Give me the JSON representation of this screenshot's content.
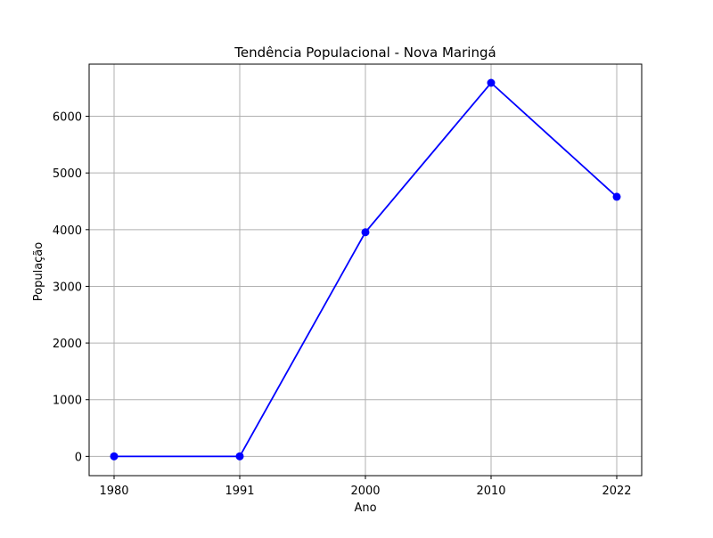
{
  "chart_data": {
    "type": "line",
    "title": "Tendência Populacional - Nova Maringá",
    "xlabel": "Ano",
    "ylabel": "População",
    "categories": [
      "1980",
      "1991",
      "2000",
      "2010",
      "2022"
    ],
    "series": [
      {
        "values": [
          0,
          0,
          3954,
          6590,
          4580
        ],
        "color": "#0000ff",
        "marker": "circle"
      }
    ],
    "ylim": [
      -340,
      6920
    ],
    "yticks": [
      0,
      1000,
      2000,
      3000,
      4000,
      5000,
      6000
    ],
    "grid": true
  }
}
